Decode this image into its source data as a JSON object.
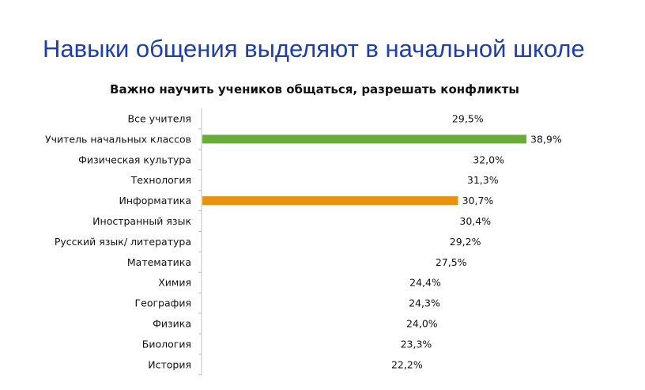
{
  "slide": {
    "title": "Навыки общения выделяют в начальной школе"
  },
  "colors": {
    "title": "#1f3fa8",
    "highlight_primary": "#6aab3a",
    "highlight_secondary": "#e8920f",
    "axis": "#bfbfbf"
  },
  "chart_data": {
    "type": "bar",
    "orientation": "horizontal",
    "title": "Важно научить учеников общаться, разрешать конфликты",
    "xlabel": "",
    "ylabel": "",
    "xlim": [
      0,
      45
    ],
    "grid": false,
    "legend": "none",
    "categories": [
      "Все учителя",
      "Учитель начальных классов",
      "Физическая культура",
      "Технология",
      "Информатика",
      "Иностранный язык",
      "Русский язык/ литература",
      "Математика",
      "Химия",
      "География",
      "Физика",
      "Биология",
      "История"
    ],
    "values": [
      29.5,
      38.9,
      32.0,
      31.3,
      30.7,
      30.4,
      29.2,
      27.5,
      24.4,
      24.3,
      24.0,
      23.3,
      22.2
    ],
    "value_labels": [
      "29,5%",
      "38,9%",
      "32,0%",
      "31,3%",
      "30,7%",
      "30,4%",
      "29,2%",
      "27,5%",
      "24,4%",
      "24,3%",
      "24,0%",
      "23,3%",
      "22,2%"
    ],
    "highlighted": {
      "Учитель начальных классов": "#6aab3a",
      "Информатика": "#e8920f"
    }
  }
}
